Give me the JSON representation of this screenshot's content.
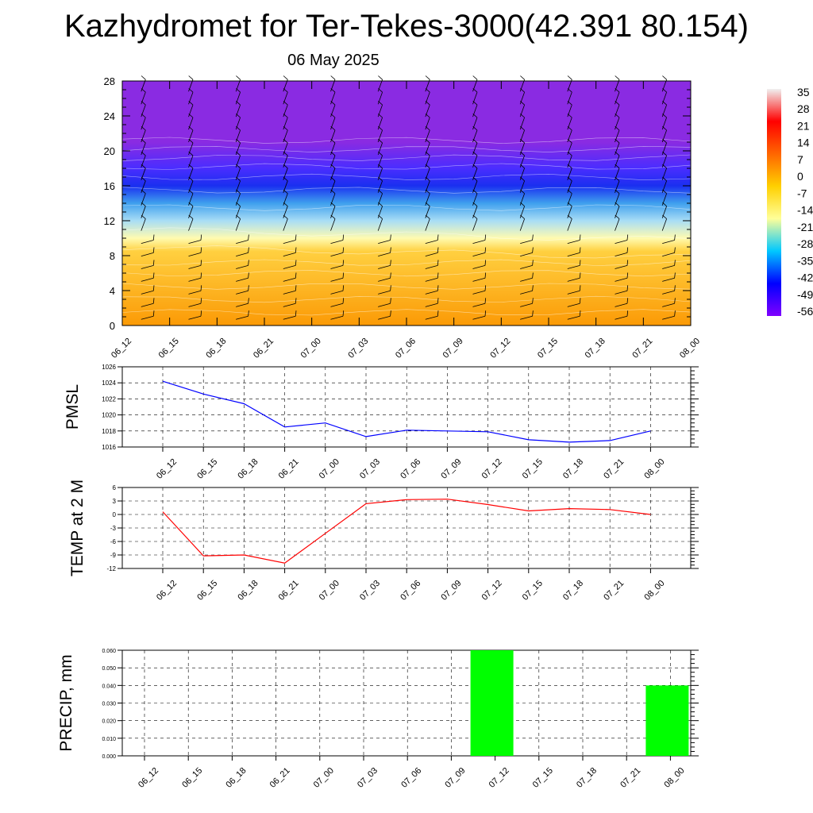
{
  "title": "Kazhydromet for Ter-Tekes-3000(42.391 80.154)",
  "subtitle": "06 May 2025",
  "chart_data": [
    {
      "type": "heatmap",
      "name": "cross-section",
      "ylim": [
        0,
        28
      ],
      "yticks": [
        0,
        4,
        8,
        12,
        16,
        20,
        24,
        28
      ],
      "categories": [
        "06_12",
        "06_15",
        "06_18",
        "06_21",
        "07_00",
        "07_03",
        "07_06",
        "07_09",
        "07_12",
        "07_15",
        "07_18",
        "07_21",
        "08_00"
      ],
      "colorbar": {
        "labels": [
          "35",
          "28",
          "21",
          "14",
          "7",
          "0",
          "-7",
          "-14",
          "-21",
          "-28",
          "-35",
          "-42",
          "-49",
          "-56"
        ],
        "colors": [
          "#f0f0f0",
          "#ff0000",
          "#ff6600",
          "#ffd000",
          "#ffff99",
          "#00c8ff",
          "#0000ff",
          "#8000ff"
        ]
      },
      "bands_y": {
        "positions": [
          0,
          8.5,
          10,
          12,
          14,
          16,
          18,
          21,
          28
        ],
        "colors": [
          "#fb9a06",
          "#ffd040",
          "#fffbb0",
          "#a8ddf5",
          "#3fa0ee",
          "#1a2ff0",
          "#4a2dff",
          "#8a2be2",
          "#8a2be2"
        ]
      }
    },
    {
      "type": "line",
      "ylabel": "PMSL",
      "ylim": [
        1016,
        1026
      ],
      "yticks": [
        "1016",
        "1018",
        "1020",
        "1022",
        "1024",
        "1026"
      ],
      "categories": [
        "06_12",
        "06_15",
        "06_18",
        "06_21",
        "07_00",
        "07_03",
        "07_06",
        "07_09",
        "07_12",
        "07_15",
        "07_18",
        "07_21",
        "08_00"
      ],
      "series": [
        {
          "color": "#0000ff",
          "values": [
            1024.2,
            1022.6,
            1021.4,
            1018.5,
            1019.0,
            1017.3,
            1018.1,
            1018.0,
            1017.9,
            1016.9,
            1016.6,
            1016.8,
            1018.0
          ]
        }
      ]
    },
    {
      "type": "line",
      "ylabel": "TEMP at 2 M",
      "ylim": [
        -12,
        6
      ],
      "yticks": [
        "-12",
        "-9",
        "-6",
        "-3",
        "0",
        "3",
        "6"
      ],
      "categories": [
        "06_12",
        "06_15",
        "06_18",
        "06_21",
        "07_00",
        "07_03",
        "07_06",
        "07_09",
        "07_12",
        "07_15",
        "07_18",
        "07_21",
        "08_00"
      ],
      "series": [
        {
          "color": "#ff0000",
          "values": [
            0.6,
            -9.2,
            -9.0,
            -10.8,
            -4.2,
            2.4,
            3.3,
            3.4,
            2.2,
            0.8,
            1.3,
            1.1,
            0.0
          ]
        }
      ]
    },
    {
      "type": "bar",
      "ylabel": "PRECIP, mm",
      "ylim": [
        0,
        0.06
      ],
      "yticks": [
        "0.000",
        "0.010",
        "0.020",
        "0.030",
        "0.040",
        "0.050",
        "0.060"
      ],
      "categories": [
        "06_12",
        "06_15",
        "06_18",
        "06_21",
        "07_00",
        "07_03",
        "07_06",
        "07_09",
        "07_12",
        "07_15",
        "07_18",
        "07_21",
        "08_00"
      ],
      "series": [
        {
          "color": "#00ff00",
          "values": [
            0,
            0,
            0,
            0,
            0,
            0,
            0,
            0,
            0.06,
            0,
            0,
            0,
            0.04
          ]
        }
      ]
    }
  ]
}
